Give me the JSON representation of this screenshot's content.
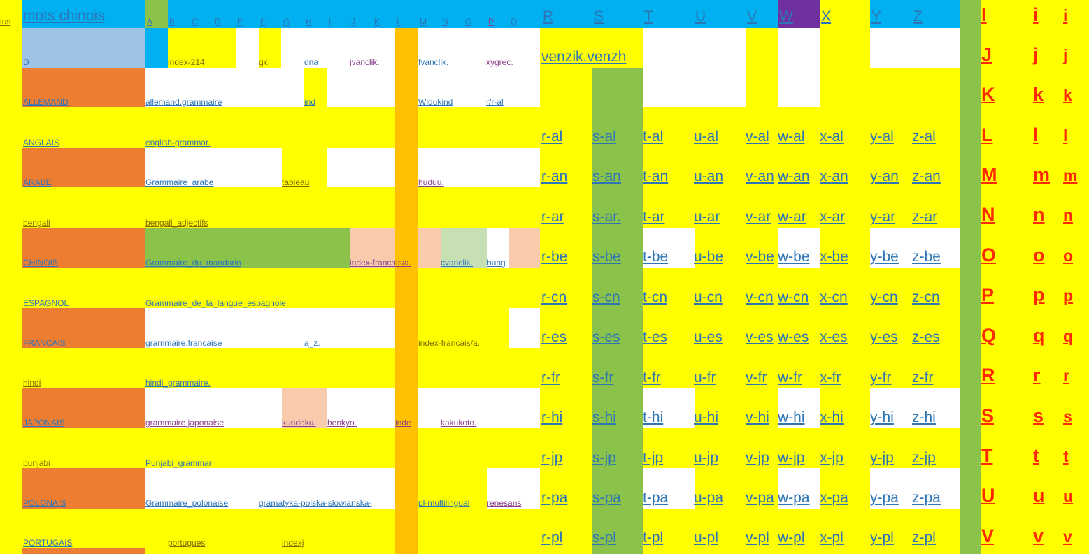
{
  "colors": {
    "yellow": "#ffff00",
    "blue": "#00b0f0",
    "orange": "#ed7d31",
    "green": "#8bc34a",
    "amber": "#ffc000",
    "white": "#ffffff",
    "purple": "#7030a0",
    "peach": "#f8cbad",
    "lightgreen": "#c6e0b4",
    "lightblue": "#9dc3e6"
  },
  "corner": "ius",
  "title": "mots chinois",
  "header_letters": [
    "A",
    "B",
    "C",
    "D",
    "E",
    "F",
    "G",
    "H",
    "I",
    "J",
    "K",
    "L",
    "M",
    "N",
    "O",
    "P",
    "Q"
  ],
  "header_big": [
    "R",
    "S",
    "T",
    "U",
    "V",
    "W",
    "X",
    "Y",
    "Z"
  ],
  "languages": [
    "D",
    "ALLEMAND",
    "ANGLAIS",
    "ARABE",
    "bengali",
    "CHINOIS",
    "ESPAGNOL",
    "FRANCAIS",
    "hindi",
    "JAPONAIS",
    "punjabi",
    "POLONAIS",
    "PORTUGAIS"
  ],
  "col_b": [
    "index-214",
    "allemand.grammaire",
    "english-grammar.",
    "Grammaire_arabe",
    "bengali_adjectifs",
    "Grammaire_du_mandarin",
    "Grammaire_de_la_langue_espagnole",
    "grammaire.francaise",
    "hindi_grammaire.",
    "grammaire japonaise",
    "Punjabi_grammar",
    "Grammaire_polonaise",
    "portugues"
  ],
  "extras": {
    "gx": "gx",
    "dna": "dna",
    "jvanclik": "jvanclik.",
    "fvanclik": "fvanclik.",
    "xygrec": "xygrec.",
    "ind": "ind",
    "widukind": "Widukind",
    "r_al_small": "r/r-al",
    "tableau": "tableau",
    "huduu": "huduu.",
    "index_fr_cn": "index-francais/a.",
    "cvanclik": "cvanclik.",
    "bung": "bung",
    "a_z": "a_z.",
    "index_fr_fr": "index-francais/a.",
    "kundoku": "kundoku.",
    "benkyo": "benkyo.",
    "inde": "inde",
    "kakukoto": "kakukoto.",
    "gramatyka": "gramatyka-polska-slowianska-",
    "pl_multi": "pl-multilingual",
    "renesans": "renesans",
    "indexj": "indexj",
    "venzik": "venzik.venzh"
  },
  "suffixes": [
    "al",
    "an",
    "ar",
    "be",
    "cn",
    "es",
    "fr",
    "hi",
    "jp",
    "pa",
    "pl"
  ],
  "s_row_labels": [
    "s-al",
    "s-an",
    "s-ar.",
    "s-be",
    "s-cn",
    "s-es",
    "s-fr",
    "s-hi",
    "s-jp",
    "s-pa",
    "s-pl"
  ],
  "row_letters": {
    "upper": [
      "I",
      "J",
      "K",
      "L",
      "M",
      "N",
      "O",
      "P",
      "Q",
      "R",
      "S",
      "T",
      "U",
      "V"
    ],
    "lower": [
      "i",
      "j",
      "k",
      "l",
      "m",
      "n",
      "o",
      "p",
      "q",
      "r",
      "s",
      "t",
      "u",
      "v"
    ]
  }
}
